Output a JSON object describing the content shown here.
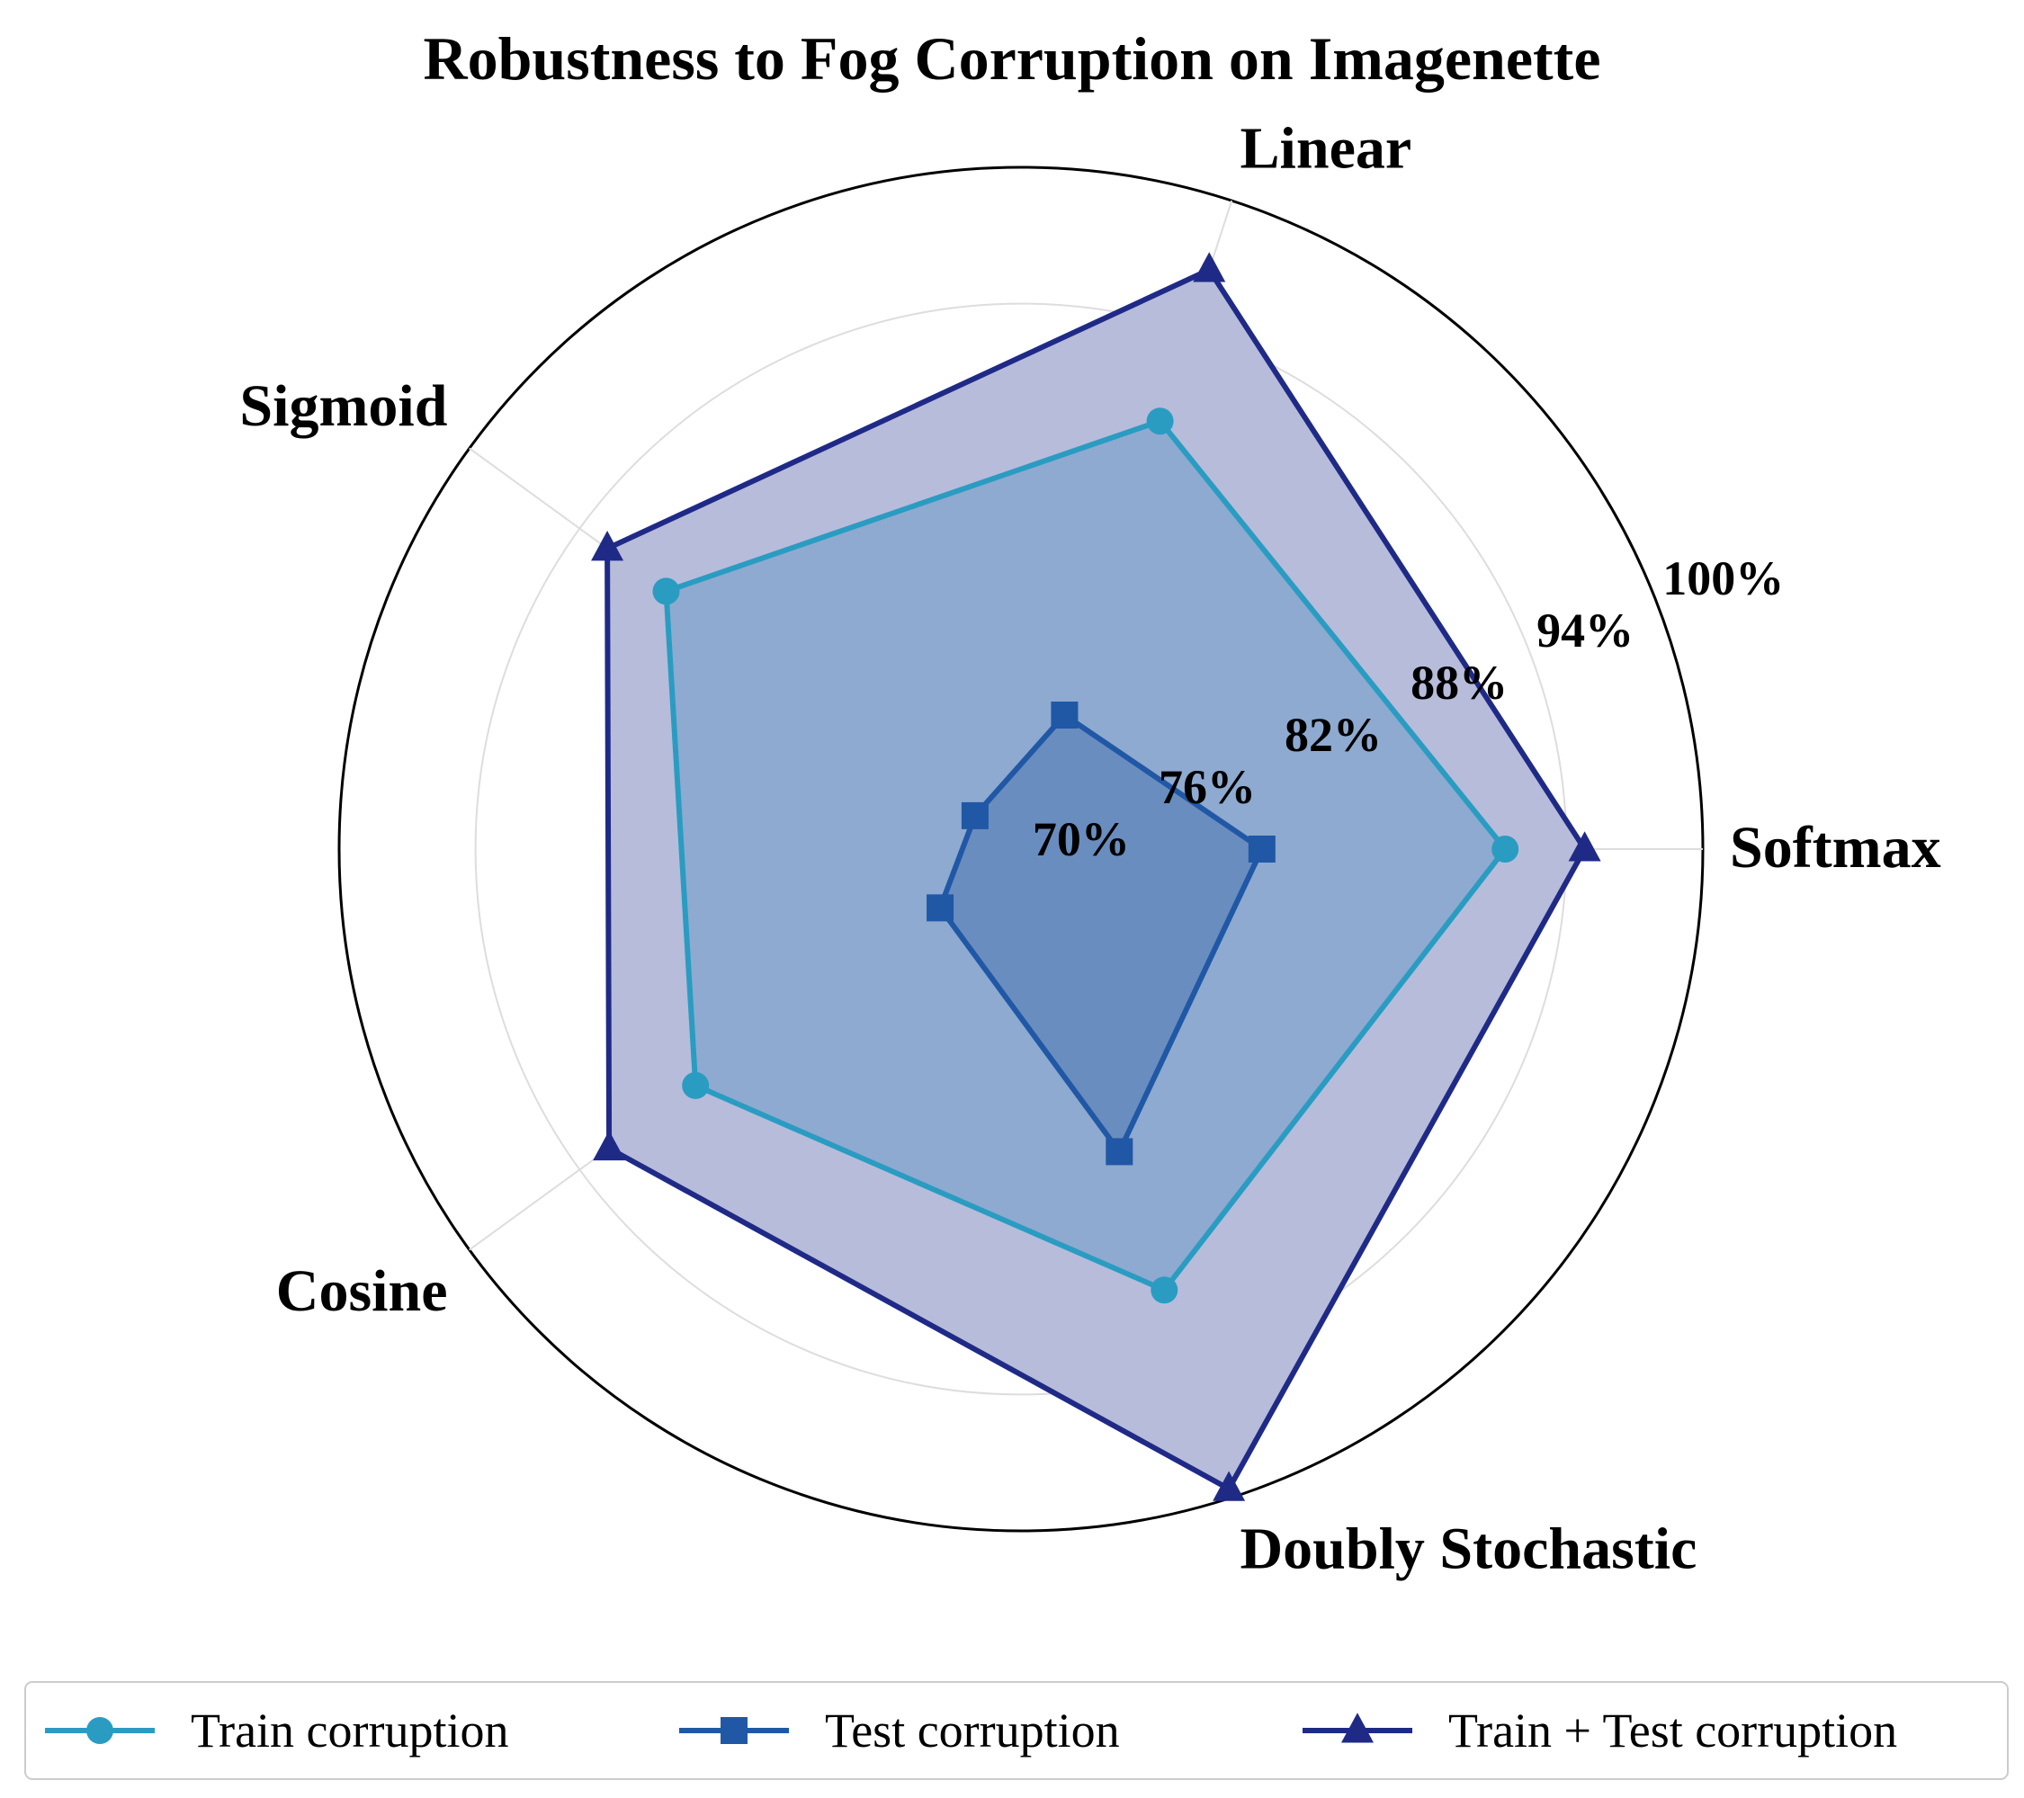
{
  "chart_data": {
    "type": "radar",
    "title": "Robustness to Fog Corruption on Imagenette",
    "categories": [
      "Softmax",
      "Linear",
      "Sigmoid",
      "Cosine",
      "Doubly Stochastic"
    ],
    "rlim": [
      70,
      100
    ],
    "radial_ticks": [
      {
        "value": 70,
        "label": "70%"
      },
      {
        "value": 76,
        "label": "76%"
      },
      {
        "value": 82,
        "label": "82%"
      },
      {
        "value": 88,
        "label": "88%"
      },
      {
        "value": 94,
        "label": "94%"
      },
      {
        "value": 100,
        "label": "100%"
      }
    ],
    "grid": true,
    "legend_position": "bottom",
    "series": [
      {
        "name": "Train + Test corruption",
        "marker": "triangle",
        "color": "#1f2a87",
        "fill": "#b7bcda",
        "values": [
          94.8,
          96.8,
          92.5,
          92.4,
          99.6
        ]
      },
      {
        "name": "Train corruption",
        "marker": "circle",
        "color": "#2a9cc2",
        "fill": "#8eaad0",
        "values": [
          91.3,
          89.8,
          89.3,
          87.7,
          90.4
        ]
      },
      {
        "name": "Test corruption",
        "marker": "square",
        "color": "#2058a6",
        "fill": "#6a8dbf",
        "values": [
          80.6,
          76.2,
          72.5,
          74.4,
          84.0
        ]
      }
    ],
    "legend_order": [
      "Train corruption",
      "Test corruption",
      "Train + Test corruption"
    ]
  }
}
